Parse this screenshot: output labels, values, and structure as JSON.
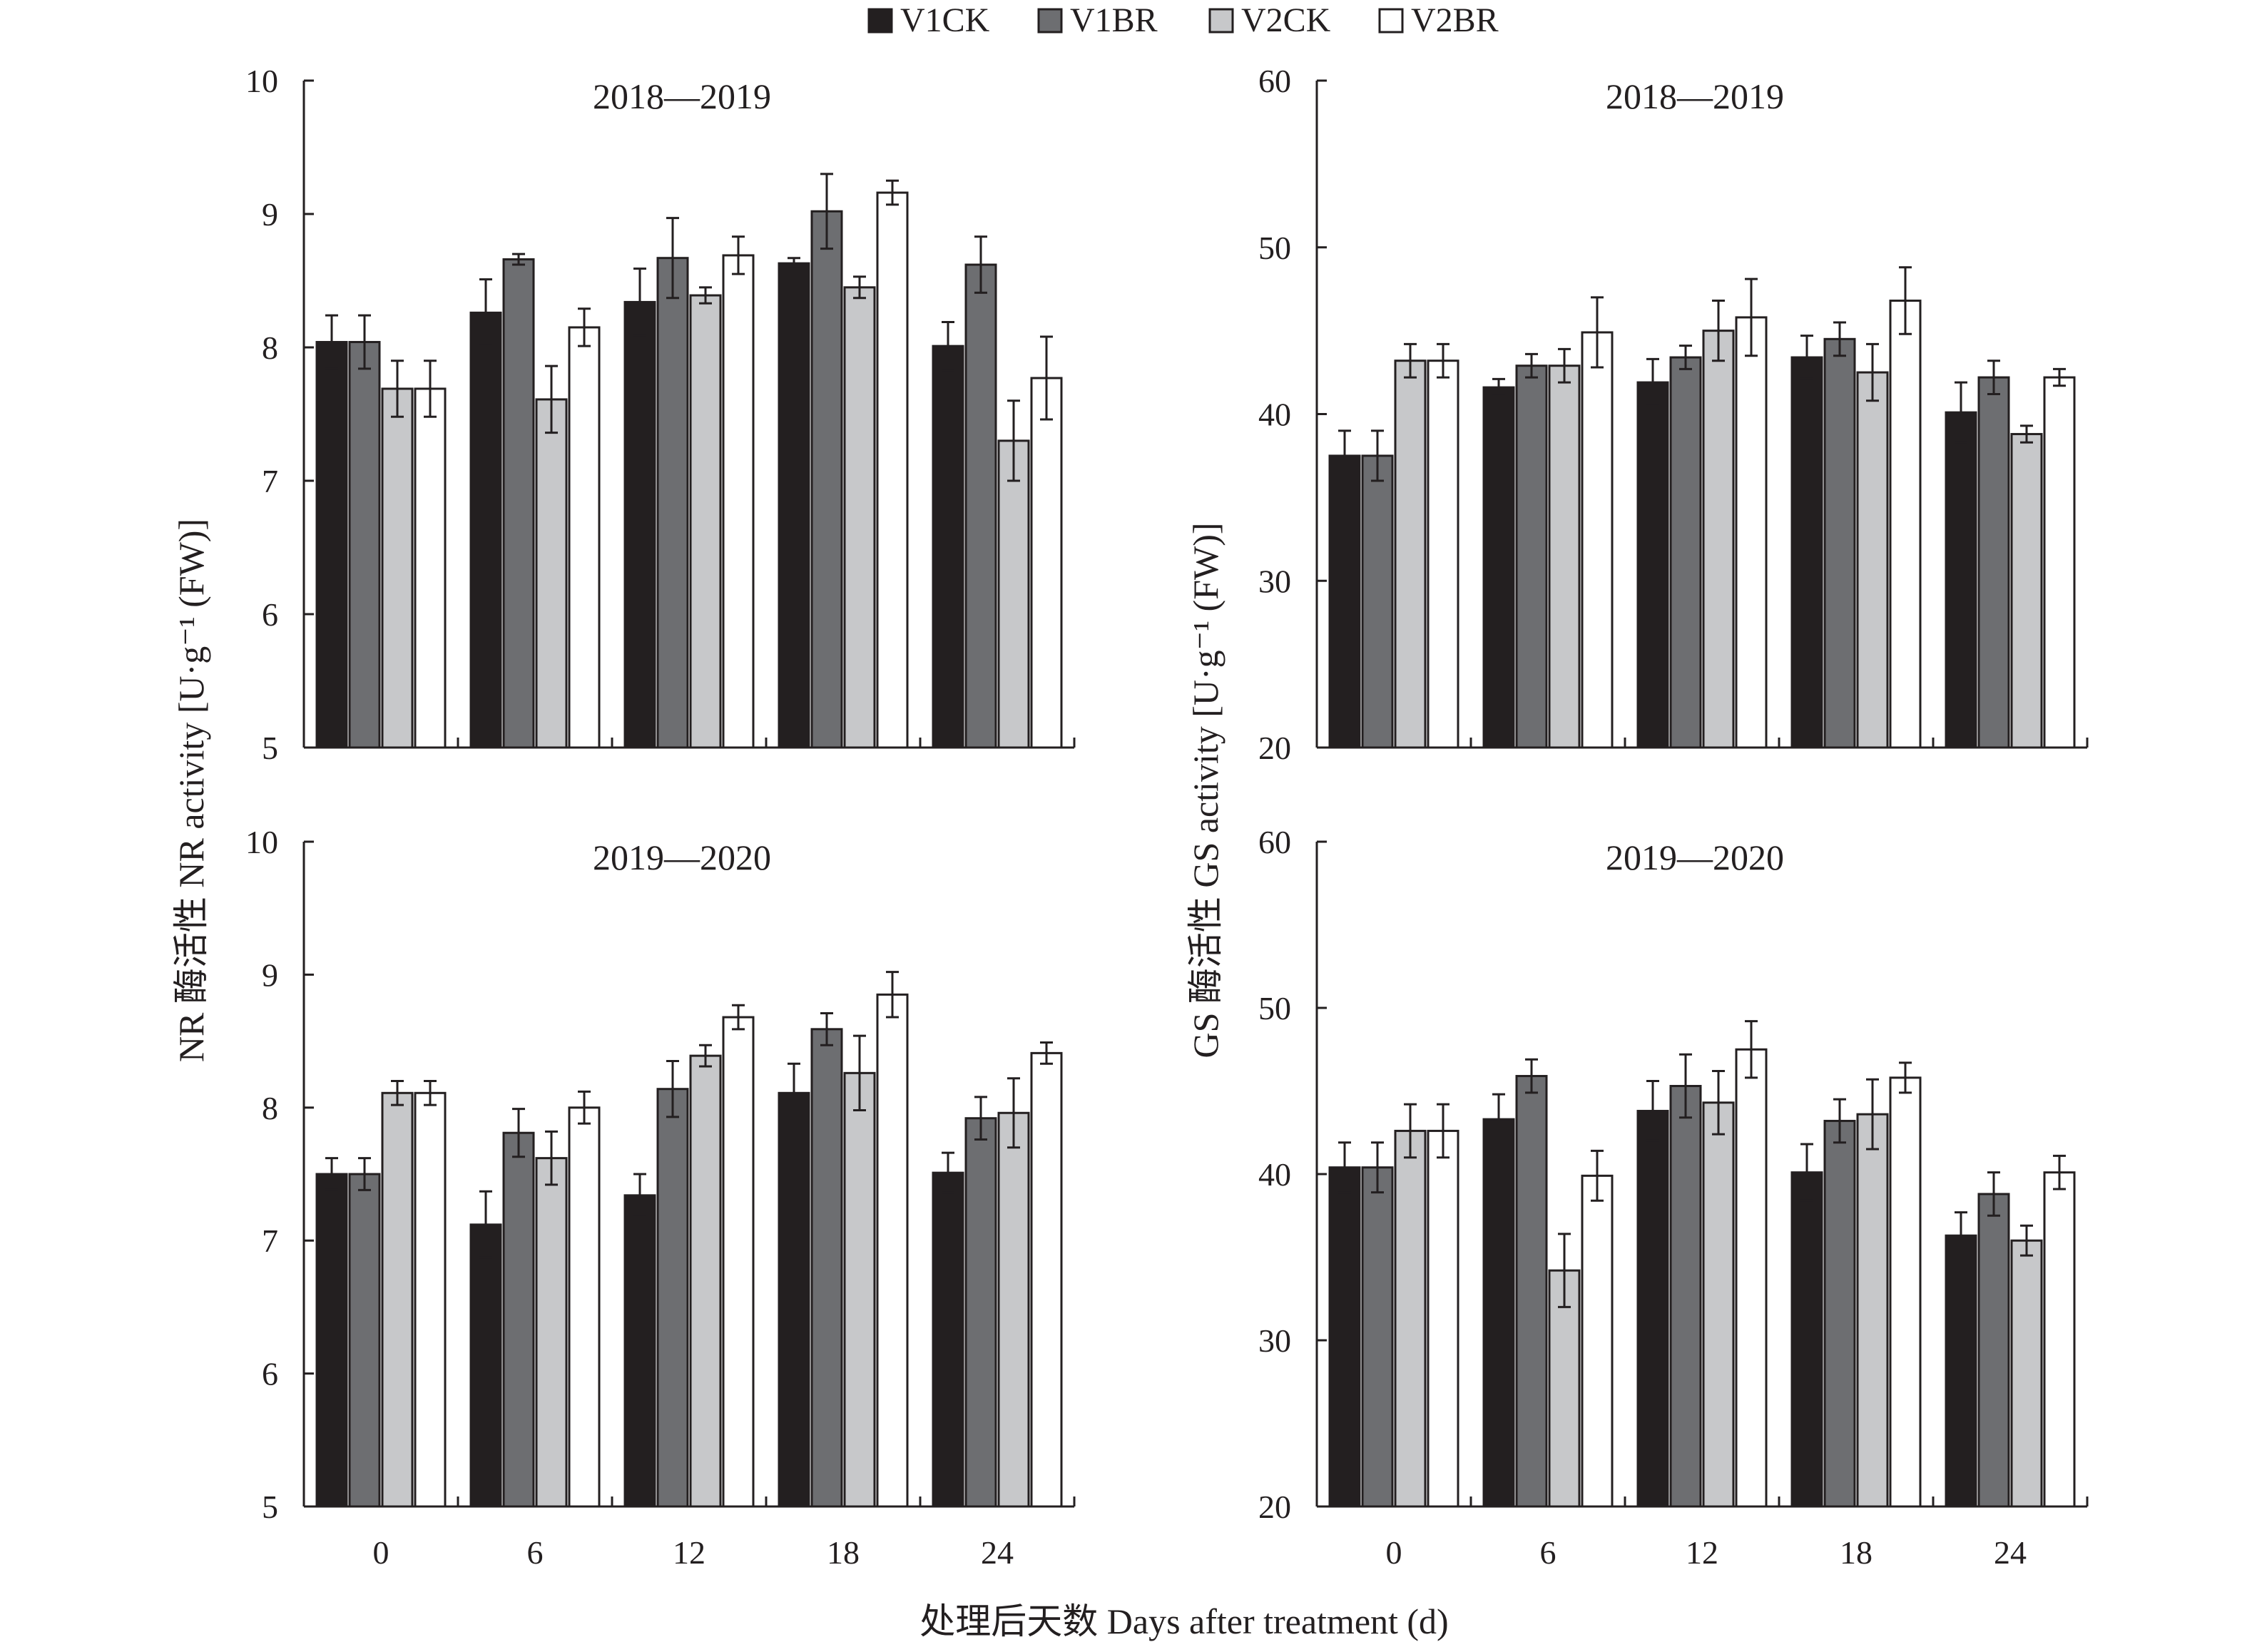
{
  "legend": [
    {
      "name": "V1CK",
      "color": "#231f20"
    },
    {
      "name": "V1BR",
      "color": "#6d6e71"
    },
    {
      "name": "V2CK",
      "color": "#c7c8ca"
    },
    {
      "name": "V2BR",
      "color": "#ffffff"
    }
  ],
  "y_axis_labels": {
    "nr": "NR 酶活性 NR activity [U·g⁻¹ (FW)]",
    "gs": "GS 酶活性 GS activity [U·g⁻¹ (FW)]"
  },
  "x_axis_label": "处理后天数 Days after treatment (d)",
  "chart_data": [
    {
      "type": "bar",
      "title": "2018—2019",
      "categories": [
        "0",
        "6",
        "12",
        "18",
        "24"
      ],
      "ylim": [
        5,
        10
      ],
      "yticks": [
        5,
        6,
        7,
        8,
        9,
        10
      ],
      "series": [
        {
          "name": "V1CK",
          "values": [
            8.04,
            8.26,
            8.34,
            8.63,
            8.01
          ],
          "errors": [
            0.2,
            0.25,
            0.25,
            0.04,
            0.18
          ]
        },
        {
          "name": "V1BR",
          "values": [
            8.04,
            8.66,
            8.67,
            9.02,
            8.62
          ],
          "errors": [
            0.2,
            0.04,
            0.3,
            0.28,
            0.21
          ]
        },
        {
          "name": "V2CK",
          "values": [
            7.69,
            7.61,
            8.39,
            8.45,
            7.3
          ],
          "errors": [
            0.21,
            0.25,
            0.06,
            0.08,
            0.3
          ]
        },
        {
          "name": "V2BR",
          "values": [
            7.69,
            8.15,
            8.69,
            9.16,
            7.77
          ],
          "errors": [
            0.21,
            0.14,
            0.14,
            0.09,
            0.31
          ]
        }
      ]
    },
    {
      "type": "bar",
      "title": "2018—2019",
      "categories": [
        "0",
        "6",
        "12",
        "18",
        "24"
      ],
      "ylim": [
        20,
        60
      ],
      "yticks": [
        20,
        30,
        40,
        50,
        60
      ],
      "series": [
        {
          "name": "V1CK",
          "values": [
            37.5,
            41.6,
            41.9,
            43.4,
            40.1
          ],
          "errors": [
            1.5,
            0.5,
            1.4,
            1.3,
            1.8
          ]
        },
        {
          "name": "V1BR",
          "values": [
            37.5,
            42.9,
            43.4,
            44.5,
            42.2
          ],
          "errors": [
            1.5,
            0.7,
            0.7,
            1.0,
            1.0
          ]
        },
        {
          "name": "V2CK",
          "values": [
            43.2,
            42.9,
            45.0,
            42.5,
            38.8
          ],
          "errors": [
            1.0,
            1.0,
            1.8,
            1.7,
            0.5
          ]
        },
        {
          "name": "V2BR",
          "values": [
            43.2,
            44.9,
            45.8,
            46.8,
            42.2
          ],
          "errors": [
            1.0,
            2.1,
            2.3,
            2.0,
            0.5
          ]
        }
      ]
    },
    {
      "type": "bar",
      "title": "2019—2020",
      "categories": [
        "0",
        "6",
        "12",
        "18",
        "24"
      ],
      "ylim": [
        5,
        10
      ],
      "yticks": [
        5,
        6,
        7,
        8,
        9,
        10
      ],
      "series": [
        {
          "name": "V1CK",
          "values": [
            7.5,
            7.12,
            7.34,
            8.11,
            7.51
          ],
          "errors": [
            0.12,
            0.25,
            0.16,
            0.22,
            0.15
          ]
        },
        {
          "name": "V1BR",
          "values": [
            7.5,
            7.81,
            8.14,
            8.59,
            7.92
          ],
          "errors": [
            0.12,
            0.18,
            0.21,
            0.12,
            0.16
          ]
        },
        {
          "name": "V2CK",
          "values": [
            8.11,
            7.62,
            8.39,
            8.26,
            7.96
          ],
          "errors": [
            0.09,
            0.2,
            0.08,
            0.28,
            0.26
          ]
        },
        {
          "name": "V2BR",
          "values": [
            8.11,
            8.0,
            8.68,
            8.85,
            8.41
          ],
          "errors": [
            0.09,
            0.12,
            0.09,
            0.17,
            0.08
          ]
        }
      ]
    },
    {
      "type": "bar",
      "title": "2019—2020",
      "categories": [
        "0",
        "6",
        "12",
        "18",
        "24"
      ],
      "ylim": [
        20,
        60
      ],
      "yticks": [
        20,
        30,
        40,
        50,
        60
      ],
      "series": [
        {
          "name": "V1CK",
          "values": [
            40.4,
            43.3,
            43.8,
            40.1,
            36.3
          ],
          "errors": [
            1.5,
            1.5,
            1.8,
            1.7,
            1.4
          ]
        },
        {
          "name": "V1BR",
          "values": [
            40.4,
            45.9,
            45.3,
            43.2,
            38.8
          ],
          "errors": [
            1.5,
            1.0,
            1.9,
            1.3,
            1.3
          ]
        },
        {
          "name": "V2CK",
          "values": [
            42.6,
            34.2,
            44.3,
            43.6,
            36.0
          ],
          "errors": [
            1.6,
            2.2,
            1.9,
            2.1,
            0.9
          ]
        },
        {
          "name": "V2BR",
          "values": [
            42.6,
            39.9,
            47.5,
            45.8,
            40.1
          ],
          "errors": [
            1.6,
            1.5,
            1.7,
            0.9,
            1.0
          ]
        }
      ]
    }
  ]
}
